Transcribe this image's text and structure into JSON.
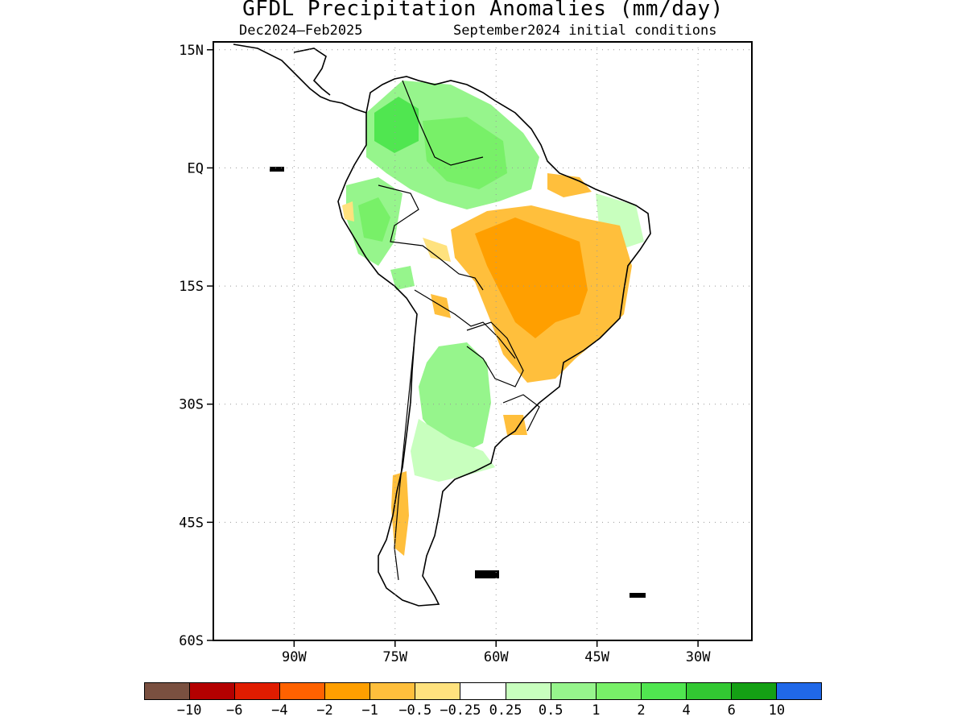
{
  "title": "GFDL Precipitation Anomalies (mm/day)",
  "subtitle_left": "Dec2024–Feb2025",
  "subtitle_right": "September2024 initial conditions",
  "map": {
    "region": "South America",
    "lon_range": [
      -102,
      -22
    ],
    "lat_range": [
      -60,
      16
    ],
    "projection": "lat-lon",
    "grid": "dotted",
    "y_ticks": [
      {
        "lat": 15,
        "label": "15N"
      },
      {
        "lat": 0,
        "label": "EQ"
      },
      {
        "lat": -15,
        "label": "15S"
      },
      {
        "lat": -30,
        "label": "30S"
      },
      {
        "lat": -45,
        "label": "45S"
      },
      {
        "lat": -60,
        "label": "60S"
      }
    ],
    "x_ticks": [
      {
        "lon": -90,
        "label": "90W"
      },
      {
        "lon": -75,
        "label": "75W"
      },
      {
        "lon": -60,
        "label": "60W"
      },
      {
        "lon": -45,
        "label": "45W"
      },
      {
        "lon": -30,
        "label": "30W"
      }
    ]
  },
  "colorbar": {
    "labels": [
      "−10",
      "−6",
      "−4",
      "−2",
      "−1",
      "−0.5",
      "−0.25",
      "0.25",
      "0.5",
      "1",
      "2",
      "4",
      "6",
      "10"
    ],
    "colors": [
      "#7a5040",
      "#b40000",
      "#e01c00",
      "#ff6200",
      "#ff9f00",
      "#ffbf3c",
      "#ffe27e",
      "#ffffff",
      "#c8ffbe",
      "#96f58c",
      "#78f068",
      "#50e650",
      "#32c832",
      "#14a014",
      "#2068e8"
    ]
  },
  "chart_data": {
    "type": "heatmap",
    "title": "GFDL Precipitation Anomalies (mm/day)",
    "subtitle": [
      "Dec2024–Feb2025",
      "September2024 initial conditions"
    ],
    "units": "mm/day",
    "color_levels": [
      -10,
      -6,
      -4,
      -2,
      -1,
      -0.5,
      -0.25,
      0.25,
      0.5,
      1,
      2,
      4,
      6,
      10
    ],
    "regions": [
      {
        "area": "northwestern South America / Colombia-Venezuela",
        "anomaly_range": [
          0.5,
          4
        ],
        "fill": "#78f068"
      },
      {
        "area": "western Amazon (Peru-Ecuador interior)",
        "anomaly_range": [
          0.5,
          2
        ],
        "fill": "#96f58c"
      },
      {
        "area": "central & eastern Brazil",
        "anomaly_range": [
          -2,
          -0.5
        ],
        "fill": "#ff9f00"
      },
      {
        "area": "southeastern Brazil coast",
        "anomaly_range": [
          -1,
          -0.5
        ],
        "fill": "#ffbf3c"
      },
      {
        "area": "northern Argentina / Paraguay",
        "anomaly_range": [
          0.25,
          2
        ],
        "fill": "#96f58c"
      },
      {
        "area": "Patagonia / central Argentina",
        "anomaly_range": [
          0.25,
          1
        ],
        "fill": "#c8ffbe"
      },
      {
        "area": "southern Chile coast",
        "anomaly_range": [
          -1,
          -0.25
        ],
        "fill": "#ffbf3c"
      }
    ]
  }
}
